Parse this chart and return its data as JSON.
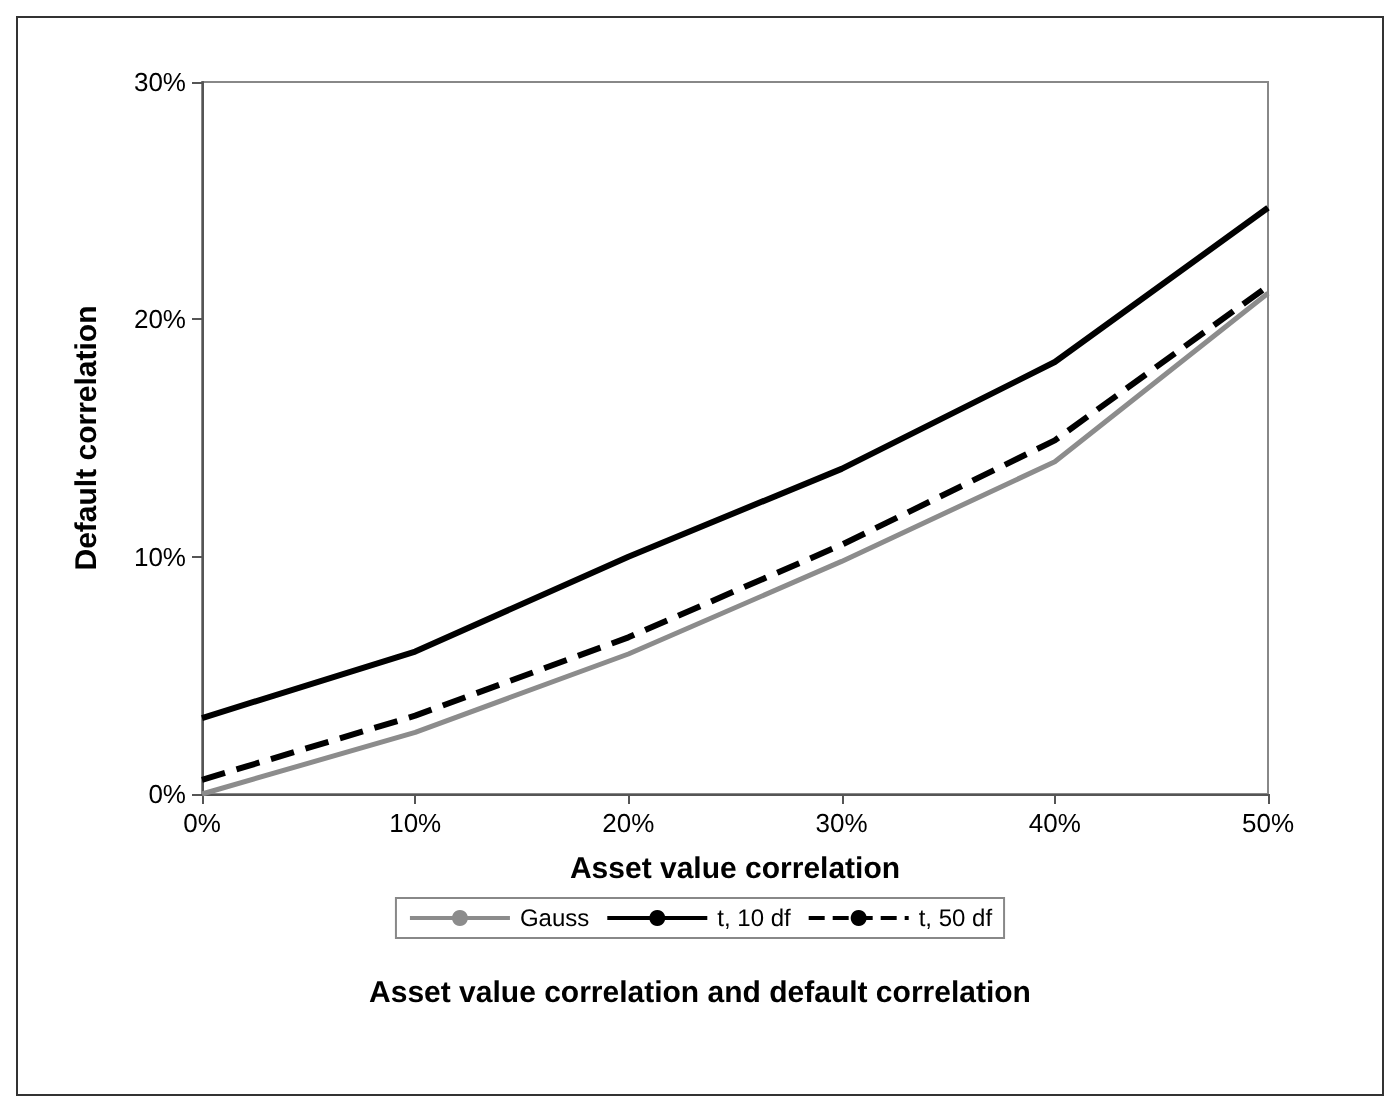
{
  "chart_data": {
    "type": "line",
    "title": "Asset value correlation and default correlation",
    "xlabel": "Asset value correlation",
    "ylabel": "Default correlation",
    "x": [
      0,
      10,
      20,
      30,
      40,
      50
    ],
    "series": [
      {
        "name": "Gauss",
        "color": "#8c8c8c",
        "line_style": "solid",
        "values": [
          0,
          2.6,
          5.9,
          9.8,
          14.0,
          21.1
        ]
      },
      {
        "name": "t, 10 df",
        "color": "#000000",
        "line_style": "solid",
        "values": [
          3.2,
          6.0,
          10.0,
          13.7,
          18.2,
          24.7
        ]
      },
      {
        "name": "t, 50 df",
        "color": "#000000",
        "line_style": "dashed",
        "values": [
          0.6,
          3.3,
          6.6,
          10.5,
          14.9,
          21.4
        ]
      }
    ],
    "xlim": [
      0,
      50
    ],
    "xticks": [
      {
        "value": 0,
        "label": "0%"
      },
      {
        "value": 10,
        "label": "10%"
      },
      {
        "value": 20,
        "label": "20%"
      },
      {
        "value": 30,
        "label": "30%"
      },
      {
        "value": 40,
        "label": "40%"
      },
      {
        "value": 50,
        "label": "50%"
      }
    ],
    "ylim": [
      0,
      30
    ],
    "yticks": [
      {
        "value": 0,
        "label": "0%"
      },
      {
        "value": 10,
        "label": "10%"
      },
      {
        "value": 20,
        "label": "20%"
      },
      {
        "value": 30,
        "label": "30%"
      }
    ],
    "grid": false,
    "legend": "bottom",
    "marker": "none"
  }
}
